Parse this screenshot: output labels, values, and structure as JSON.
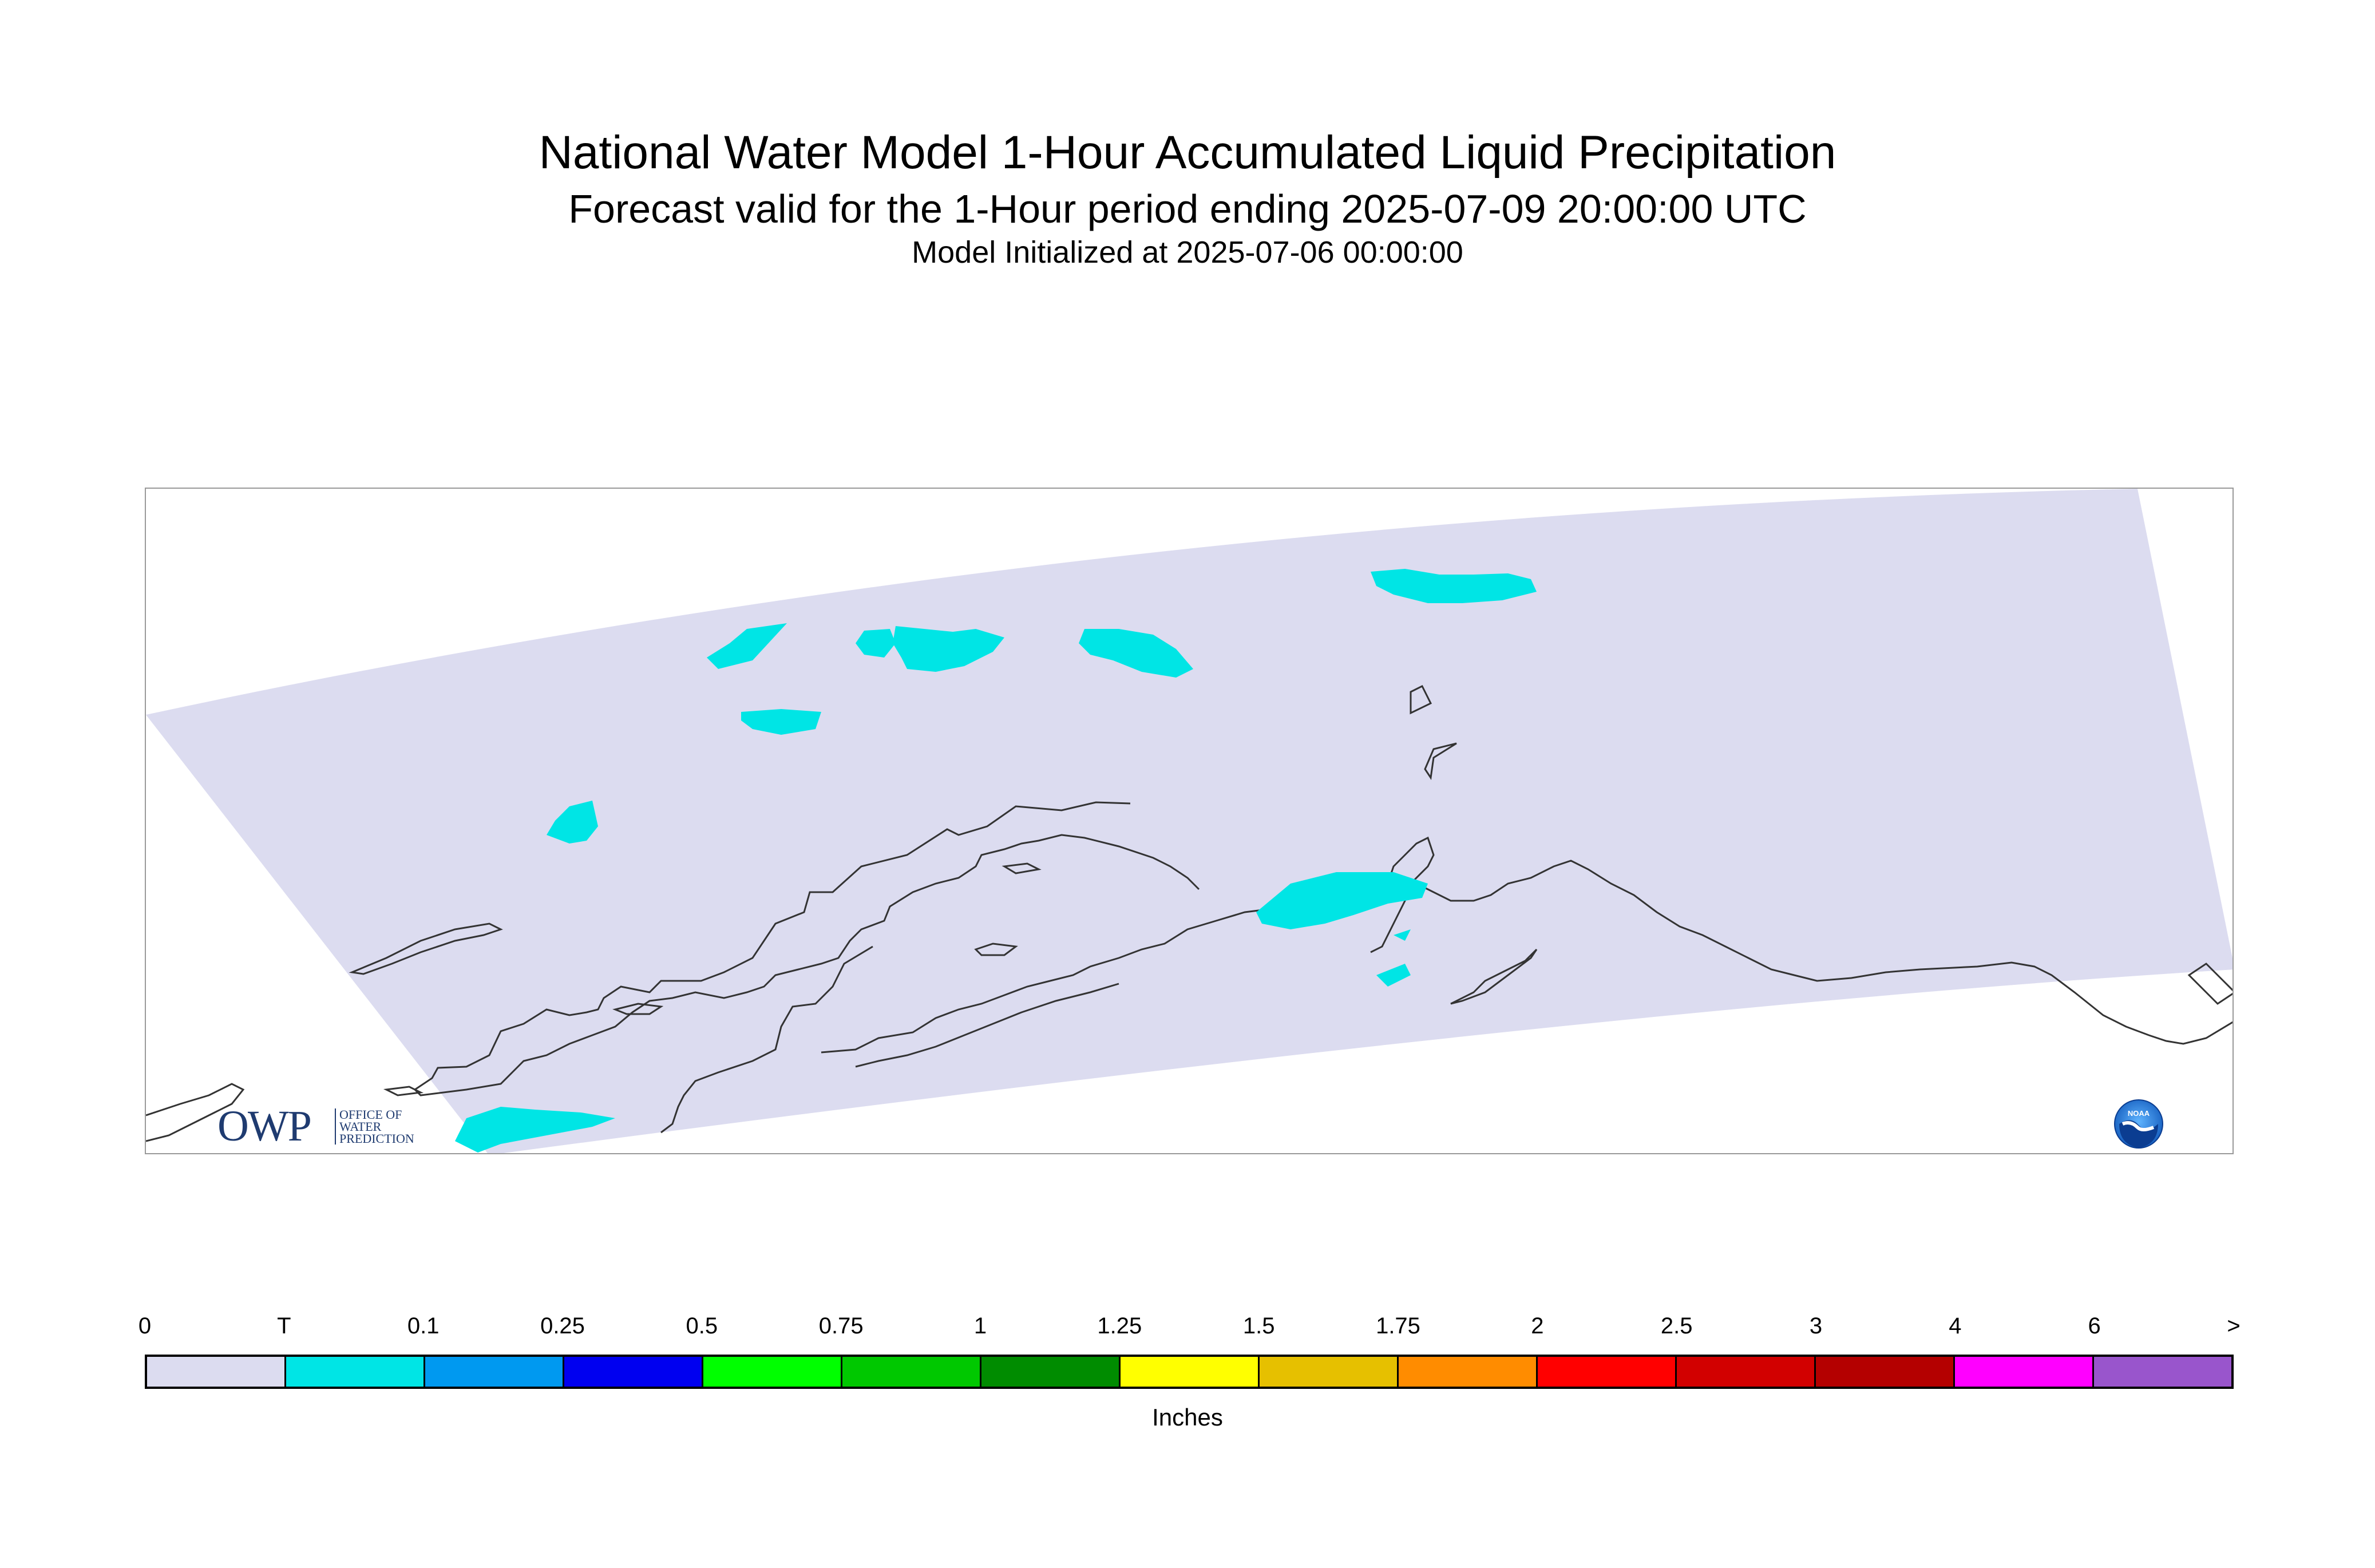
{
  "header": {
    "title": "National Water Model 1-Hour Accumulated Liquid Precipitation",
    "subtitle": "Forecast valid for the 1-Hour period ending 2025-07-09 20:00:00 UTC",
    "init_line": "Model Initialized at 2025-07-06 00:00:00"
  },
  "map": {
    "region": "Alaska",
    "domain_fill": "#dcdcf0",
    "coastline_color": "#333333",
    "precip_color": "#00e5e5"
  },
  "logos": {
    "owp": {
      "big": "OWP",
      "line1": "OFFICE OF",
      "line2": "WATER",
      "line3": "PREDICTION",
      "icon": "owp-logo"
    },
    "noaa": {
      "text": "NOAA",
      "icon": "noaa-logo"
    }
  },
  "legend": {
    "units": "Inches",
    "tick_labels": [
      "0",
      "T",
      "0.1",
      "0.25",
      "0.5",
      "0.75",
      "1",
      "1.25",
      "1.5",
      "1.75",
      "2",
      "2.5",
      "3",
      "4",
      "6",
      ">"
    ],
    "colors": [
      "#dcdcf0",
      "#00e5e5",
      "#0099f0",
      "#0000f0",
      "#00ff00",
      "#00c800",
      "#008c00",
      "#ffff00",
      "#e6c000",
      "#ff8c00",
      "#ff0000",
      "#d20000",
      "#b40000",
      "#ff00ff",
      "#9955cc"
    ]
  }
}
